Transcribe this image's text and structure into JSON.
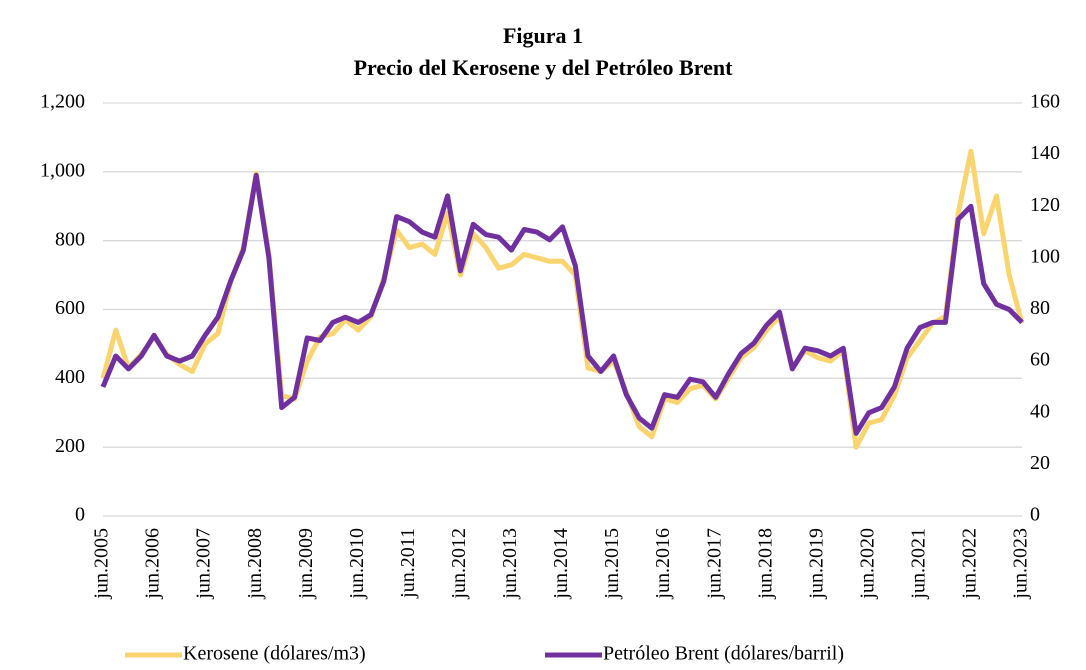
{
  "chart_data": {
    "type": "line",
    "title": "Figura 1",
    "subtitle": "Precio del Kerosene y del Petróleo Brent",
    "categories": [
      "jun.2005",
      null,
      null,
      null,
      "jun.2006",
      null,
      null,
      null,
      "jun.2007",
      null,
      null,
      null,
      "jun.2008",
      null,
      null,
      null,
      "jun.2009",
      null,
      null,
      null,
      "jun.2010",
      null,
      null,
      null,
      "jun.2011",
      null,
      null,
      null,
      "jun.2012",
      null,
      null,
      null,
      "jun.2013",
      null,
      null,
      null,
      "jun.2014",
      null,
      null,
      null,
      "jun.2015",
      null,
      null,
      null,
      "jun.2016",
      null,
      null,
      null,
      "jun.2017",
      null,
      null,
      null,
      "jun.2018",
      null,
      null,
      null,
      "jun.2019",
      null,
      null,
      null,
      "jun.2020",
      null,
      null,
      null,
      "jun.2021",
      null,
      null,
      null,
      "jun.2022",
      null,
      null,
      null,
      "jun.2023"
    ],
    "series": [
      {
        "name": "Kerosene (dólares/m3)",
        "color": "#fad46e",
        "axis": "y",
        "values": [
          400,
          540,
          430,
          470,
          520,
          470,
          440,
          420,
          500,
          530,
          680,
          780,
          995,
          760,
          350,
          340,
          450,
          520,
          530,
          570,
          540,
          580,
          690,
          830,
          780,
          790,
          760,
          880,
          700,
          820,
          780,
          720,
          730,
          760,
          750,
          740,
          740,
          700,
          430,
          420,
          450,
          360,
          260,
          230,
          340,
          330,
          370,
          380,
          340,
          400,
          460,
          490,
          540,
          580,
          430,
          480,
          460,
          450,
          480,
          200,
          270,
          280,
          350,
          460,
          510,
          560,
          580,
          880,
          1060,
          820,
          930,
          700,
          560
        ]
      },
      {
        "name": "Petróleo Brent (dólares/barril)",
        "color": "#7030a0",
        "axis": "y2",
        "values": [
          50,
          62,
          57,
          62,
          70,
          62,
          60,
          62,
          70,
          77,
          91,
          103,
          132,
          100,
          42,
          46,
          69,
          68,
          75,
          77,
          75,
          78,
          91,
          116,
          114,
          110,
          108,
          124,
          95,
          113,
          109,
          108,
          103,
          111,
          110,
          107,
          112,
          97,
          62,
          56,
          62,
          47,
          38,
          34,
          47,
          46,
          53,
          52,
          46,
          55,
          63,
          67,
          74,
          79,
          57,
          65,
          64,
          62,
          65,
          32,
          40,
          42,
          50,
          65,
          73,
          75,
          75,
          115,
          120,
          90,
          82,
          80,
          75
        ]
      }
    ],
    "ylim": [
      0,
      1200
    ],
    "yticks": [
      0,
      200,
      400,
      600,
      800,
      {
        "value": 1000,
        "label": "1,000"
      },
      {
        "value": 1200,
        "label": "1,200"
      }
    ],
    "y2lim": [
      0,
      160
    ],
    "y2ticks": [
      0,
      20,
      40,
      60,
      80,
      100,
      120,
      140,
      160
    ],
    "grid": true,
    "legend": "bottom"
  }
}
